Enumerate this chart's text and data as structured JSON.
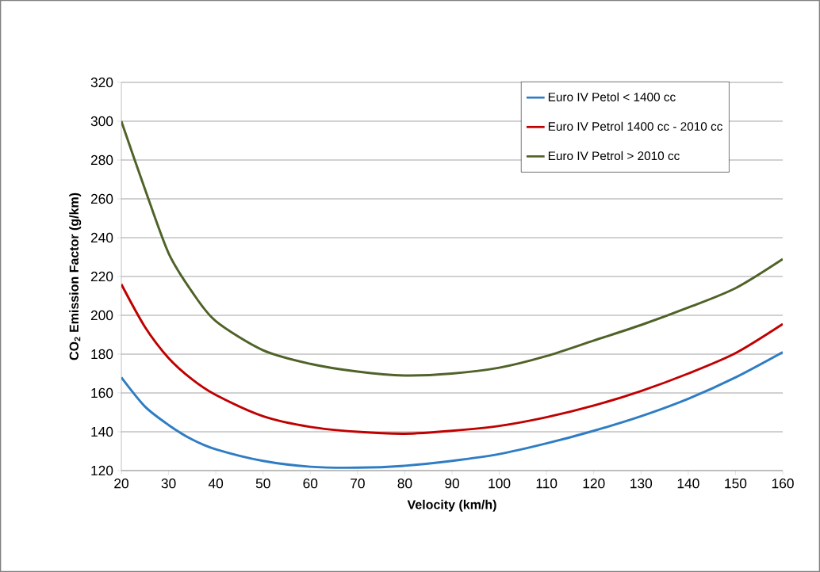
{
  "chart_data": {
    "type": "line",
    "xlabel": "Velocity (km/h)",
    "ylabel": "CO$_{2}$ Emission Factor (g/km)",
    "xlim": [
      20,
      160
    ],
    "xticks": [
      20,
      30,
      40,
      50,
      60,
      70,
      80,
      90,
      100,
      110,
      120,
      130,
      140,
      150,
      160
    ],
    "ylim": [
      120,
      320
    ],
    "yticks": [
      120,
      140,
      160,
      180,
      200,
      220,
      240,
      260,
      280,
      300,
      320
    ],
    "grid": "y",
    "legend": "top right",
    "marker": "none",
    "line_style": "solid",
    "series": [
      {
        "name": "Euro IV Petol < 1400 cc",
        "color": "#2e7dc4",
        "x": [
          20,
          25,
          30,
          35,
          40,
          50,
          60,
          70,
          80,
          90,
          100,
          110,
          120,
          130,
          140,
          150,
          160
        ],
        "values": [
          168,
          153,
          143.5,
          136,
          131,
          125,
          122,
          121.5,
          122.5,
          125,
          128.5,
          134,
          140.5,
          148,
          157,
          168,
          181
        ]
      },
      {
        "name": "Euro IV Petrol 1400 cc - 2010 cc",
        "color": "#c00000",
        "x": [
          20,
          25,
          30,
          35,
          40,
          50,
          60,
          70,
          80,
          90,
          100,
          110,
          120,
          130,
          140,
          150,
          160
        ],
        "values": [
          216,
          194,
          178,
          167,
          159,
          148,
          142.5,
          140,
          139,
          140.5,
          143,
          147.5,
          153.5,
          161,
          170,
          180.5,
          195.5
        ]
      },
      {
        "name": "Euro IV Petrol > 2010 cc",
        "color": "#4f6228",
        "x": [
          20,
          25,
          30,
          35,
          40,
          50,
          60,
          70,
          80,
          90,
          100,
          110,
          120,
          130,
          140,
          150,
          160
        ],
        "values": [
          300,
          265,
          232,
          212,
          197,
          182,
          175,
          171,
          169,
          170,
          173,
          179,
          187,
          195,
          204,
          214,
          229
        ]
      }
    ]
  }
}
